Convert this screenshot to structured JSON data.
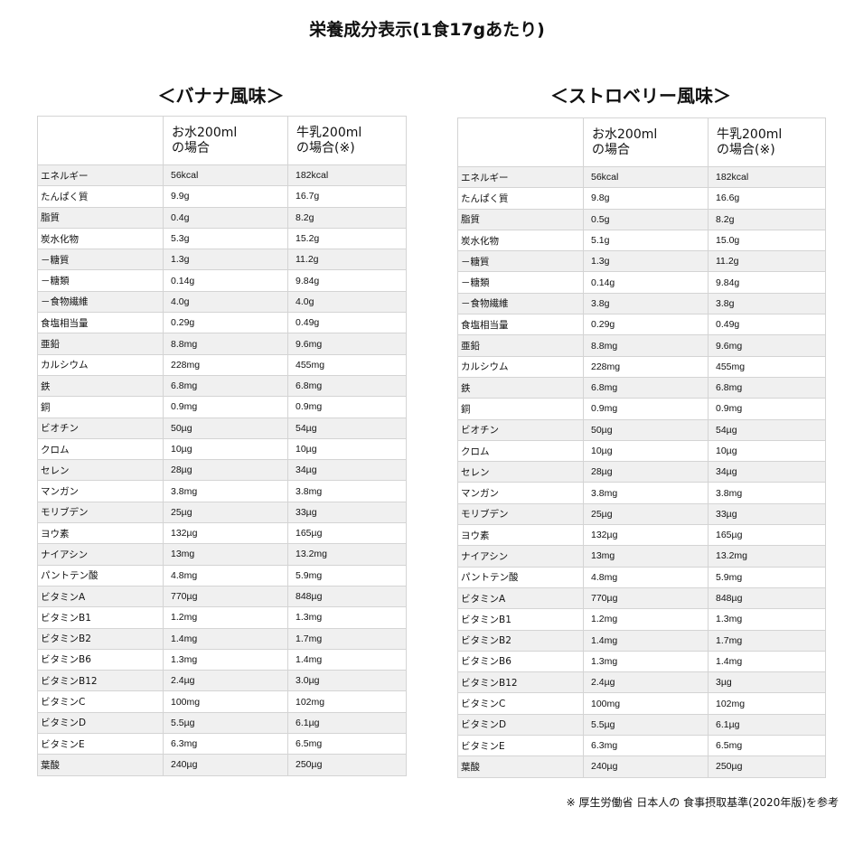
{
  "title": "栄養成分表示(1食17gあたり)",
  "headers": [
    "",
    "お水200ml\nの場合",
    "牛乳200ml\nの場合(※)"
  ],
  "tables": [
    {
      "flavor": "＜バナナ風味＞",
      "rows": [
        [
          "エネルギー",
          "56kcal",
          "182kcal"
        ],
        [
          "たんぱく質",
          "9.9g",
          "16.7g"
        ],
        [
          "脂質",
          "0.4g",
          "8.2g"
        ],
        [
          "炭水化物",
          "5.3g",
          "15.2g"
        ],
        [
          "－糖質",
          "1.3g",
          "11.2g"
        ],
        [
          "－糖類",
          "0.14g",
          "9.84g"
        ],
        [
          "－食物繊維",
          "4.0g",
          "4.0g"
        ],
        [
          "食塩相当量",
          "0.29g",
          "0.49g"
        ],
        [
          "亜鉛",
          "8.8mg",
          "9.6mg"
        ],
        [
          "カルシウム",
          "228mg",
          "455mg"
        ],
        [
          "鉄",
          "6.8mg",
          "6.8mg"
        ],
        [
          "銅",
          "0.9mg",
          "0.9mg"
        ],
        [
          "ビオチン",
          "50µg",
          "54µg"
        ],
        [
          "クロム",
          "10µg",
          "10µg"
        ],
        [
          "セレン",
          "28µg",
          "34µg"
        ],
        [
          "マンガン",
          "3.8mg",
          "3.8mg"
        ],
        [
          "モリブデン",
          "25µg",
          "33µg"
        ],
        [
          "ヨウ素",
          "132µg",
          "165µg"
        ],
        [
          "ナイアシン",
          "13mg",
          "13.2mg"
        ],
        [
          "パントテン酸",
          "4.8mg",
          "5.9mg"
        ],
        [
          "ビタミンA",
          "770µg",
          "848µg"
        ],
        [
          "ビタミンB1",
          "1.2mg",
          "1.3mg"
        ],
        [
          "ビタミンB2",
          "1.4mg",
          "1.7mg"
        ],
        [
          "ビタミンB6",
          "1.3mg",
          "1.4mg"
        ],
        [
          "ビタミンB12",
          "2.4µg",
          "3.0µg"
        ],
        [
          "ビタミンC",
          "100mg",
          "102mg"
        ],
        [
          "ビタミンD",
          "5.5µg",
          "6.1µg"
        ],
        [
          "ビタミンE",
          "6.3mg",
          "6.5mg"
        ],
        [
          "葉酸",
          "240µg",
          "250µg"
        ]
      ]
    },
    {
      "flavor": "＜ストロベリー風味＞",
      "rows": [
        [
          "エネルギー",
          "56kcal",
          "182kcal"
        ],
        [
          "たんぱく質",
          "9.8g",
          "16.6g"
        ],
        [
          "脂質",
          "0.5g",
          "8.2g"
        ],
        [
          "炭水化物",
          "5.1g",
          "15.0g"
        ],
        [
          "－糖質",
          "1.3g",
          "11.2g"
        ],
        [
          "－糖類",
          "0.14g",
          "9.84g"
        ],
        [
          "－食物繊維",
          "3.8g",
          "3.8g"
        ],
        [
          "食塩相当量",
          "0.29g",
          "0.49g"
        ],
        [
          "亜鉛",
          "8.8mg",
          "9.6mg"
        ],
        [
          "カルシウム",
          "228mg",
          "455mg"
        ],
        [
          "鉄",
          "6.8mg",
          "6.8mg"
        ],
        [
          "銅",
          "0.9mg",
          "0.9mg"
        ],
        [
          "ビオチン",
          "50µg",
          "54µg"
        ],
        [
          "クロム",
          "10µg",
          "10µg"
        ],
        [
          "セレン",
          "28µg",
          "34µg"
        ],
        [
          "マンガン",
          "3.8mg",
          "3.8mg"
        ],
        [
          "モリブデン",
          "25µg",
          "33µg"
        ],
        [
          "ヨウ素",
          "132µg",
          "165µg"
        ],
        [
          "ナイアシン",
          "13mg",
          "13.2mg"
        ],
        [
          "パントテン酸",
          "4.8mg",
          "5.9mg"
        ],
        [
          "ビタミンA",
          "770µg",
          "848µg"
        ],
        [
          "ビタミンB1",
          "1.2mg",
          "1.3mg"
        ],
        [
          "ビタミンB2",
          "1.4mg",
          "1.7mg"
        ],
        [
          "ビタミンB6",
          "1.3mg",
          "1.4mg"
        ],
        [
          "ビタミンB12",
          "2.4µg",
          "3µg"
        ],
        [
          "ビタミンC",
          "100mg",
          "102mg"
        ],
        [
          "ビタミンD",
          "5.5µg",
          "6.1µg"
        ],
        [
          "ビタミンE",
          "6.3mg",
          "6.5mg"
        ],
        [
          "葉酸",
          "240µg",
          "250µg"
        ]
      ]
    }
  ],
  "footnote": "※ 厚生労働省 日本人の 食事摂取基準(2020年版)を参考",
  "colors": {
    "stripe": "#f0f0f0",
    "border": "#d4d4d4"
  }
}
